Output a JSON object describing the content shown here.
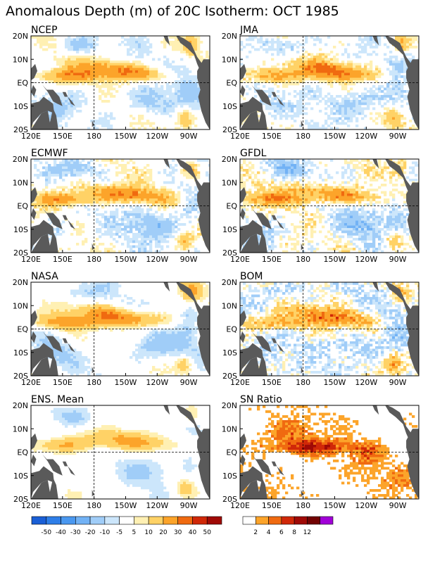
{
  "title": "Anomalous Depth (m) of 20C Isotherm: OCT 1985",
  "chart_data": {
    "type": "heatmap",
    "xlabels": [
      "120E",
      "150E",
      "180",
      "150W",
      "120W",
      "90W"
    ],
    "ylabels": [
      "20N",
      "10N",
      "EQ",
      "10S",
      "20S"
    ],
    "xlim": [
      "120E",
      "70W"
    ],
    "ylim": [
      "20S",
      "20N"
    ],
    "reference_lines": [
      "180",
      "EQ"
    ],
    "panels": [
      {
        "name": "NCEP"
      },
      {
        "name": "JMA"
      },
      {
        "name": "ECMWF"
      },
      {
        "name": "GFDL"
      },
      {
        "name": "NASA"
      },
      {
        "name": "BOM"
      },
      {
        "name": "ENS. Mean"
      },
      {
        "name": "SN Ratio"
      }
    ],
    "anomaly_colorbar": {
      "colors": [
        "#1a5fd6",
        "#2e7ee8",
        "#4a98f0",
        "#72b2f5",
        "#a0cdf8",
        "#cce6fb",
        "#ffffff",
        "#fff0b3",
        "#ffd266",
        "#fca42a",
        "#f06a10",
        "#d02808",
        "#a00a06",
        "#720202",
        "#a100d8"
      ],
      "labels": [
        "-50",
        "-40",
        "-30",
        "-20",
        "-10",
        "-5",
        "5",
        "10",
        "20",
        "30",
        "40",
        "50"
      ]
    },
    "sn_colorbar": {
      "colors": [
        "#ffffff",
        "#fca42a",
        "#f06a10",
        "#d02808",
        "#a00a06",
        "#720202",
        "#a100d8"
      ],
      "labels": [
        "2",
        "4",
        "6",
        "8",
        "12"
      ]
    },
    "colors": {
      "land": "#5a5a5a"
    }
  }
}
